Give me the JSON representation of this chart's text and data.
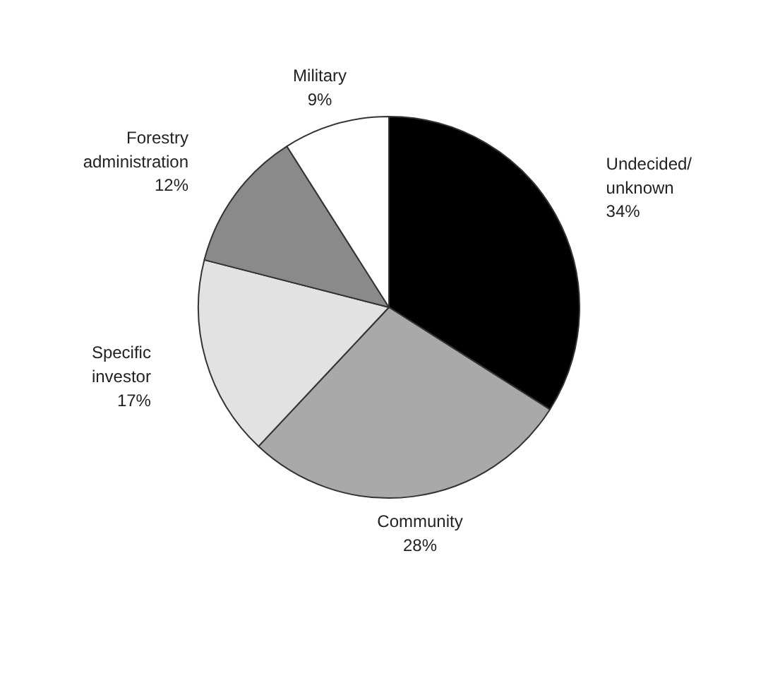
{
  "chart_data": {
    "type": "pie",
    "categories": [
      "Undecided/\nunknown",
      "Community",
      "Specific\ninvestor",
      "Forestry\nadministration",
      "Military"
    ],
    "values": [
      34,
      28,
      17,
      12,
      9
    ],
    "value_labels": [
      "34%",
      "28%",
      "17%",
      "12%",
      "9%"
    ],
    "colors": [
      "#000000",
      "#a9a9a9",
      "#e2e2e2",
      "#8a8a8a",
      "#ffffff"
    ]
  }
}
